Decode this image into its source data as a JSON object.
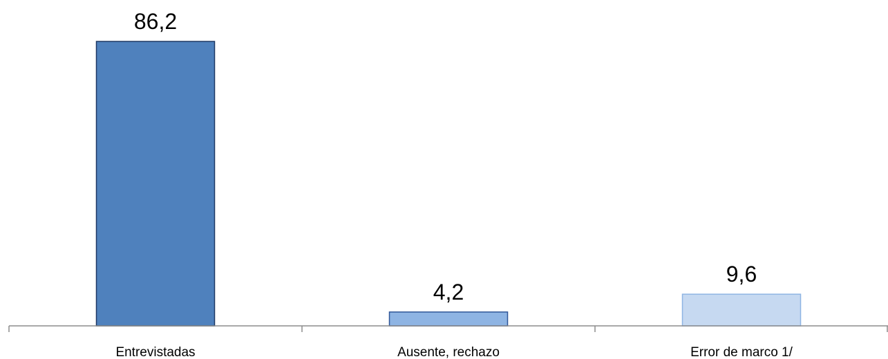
{
  "chart_data": {
    "type": "bar",
    "categories": [
      "Entrevistadas",
      "Ausente, rechazo",
      "Error de marco 1/"
    ],
    "values": [
      86.2,
      4.2,
      9.6
    ],
    "data_labels": [
      "86,2",
      "4,2",
      "9,6"
    ],
    "title": "",
    "xlabel": "",
    "ylabel": "",
    "ylim": [
      0,
      86.2
    ],
    "grid": false,
    "legend": "none",
    "colors": {
      "bar_fills": [
        "#4f81bd",
        "#8eb4e3",
        "#c6d9f1"
      ],
      "bar_strokes": [
        "#1f3864",
        "#2e5597",
        "#8eb4e3"
      ],
      "axis": "#8c8c8c"
    }
  }
}
